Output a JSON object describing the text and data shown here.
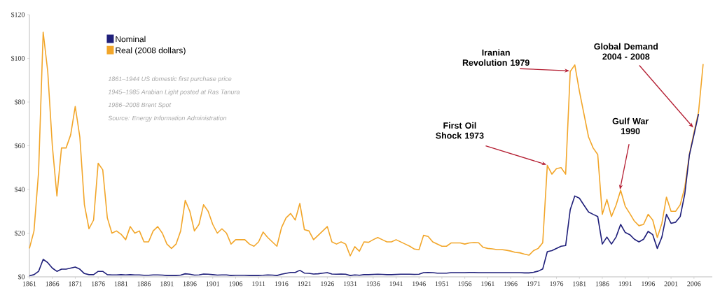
{
  "chart_data": {
    "type": "line",
    "x": [
      1861,
      1862,
      1863,
      1864,
      1865,
      1866,
      1867,
      1868,
      1869,
      1870,
      1871,
      1872,
      1873,
      1874,
      1875,
      1876,
      1877,
      1878,
      1879,
      1880,
      1881,
      1882,
      1883,
      1884,
      1885,
      1886,
      1887,
      1888,
      1889,
      1890,
      1891,
      1892,
      1893,
      1894,
      1895,
      1896,
      1897,
      1898,
      1899,
      1900,
      1901,
      1902,
      1903,
      1904,
      1905,
      1906,
      1907,
      1908,
      1909,
      1910,
      1911,
      1912,
      1913,
      1914,
      1915,
      1916,
      1917,
      1918,
      1919,
      1920,
      1921,
      1922,
      1923,
      1924,
      1925,
      1926,
      1927,
      1928,
      1929,
      1930,
      1931,
      1932,
      1933,
      1934,
      1935,
      1936,
      1937,
      1938,
      1939,
      1940,
      1941,
      1942,
      1943,
      1944,
      1945,
      1946,
      1947,
      1948,
      1949,
      1950,
      1951,
      1952,
      1953,
      1954,
      1955,
      1956,
      1957,
      1958,
      1959,
      1960,
      1961,
      1962,
      1963,
      1964,
      1965,
      1966,
      1967,
      1968,
      1969,
      1970,
      1971,
      1972,
      1973,
      1974,
      1975,
      1976,
      1977,
      1978,
      1979,
      1980,
      1981,
      1982,
      1983,
      1984,
      1985,
      1986,
      1987,
      1988,
      1989,
      1990,
      1991,
      1992,
      1993,
      1994,
      1995,
      1996,
      1997,
      1998,
      1999,
      2000,
      2001,
      2002,
      2003,
      2004,
      2005,
      2006,
      2007,
      2008
    ],
    "series": [
      {
        "name": "Nominal",
        "color": "#1f1f7a",
        "values": [
          0.5,
          1,
          2.5,
          8,
          6.5,
          4,
          2.5,
          3.5,
          3.5,
          4,
          4.5,
          3.5,
          1.5,
          1,
          1,
          2.5,
          2.5,
          1,
          0.9,
          0.9,
          1,
          0.9,
          1,
          0.9,
          0.9,
          0.7,
          0.7,
          0.9,
          0.9,
          0.8,
          0.6,
          0.6,
          0.6,
          0.8,
          1.4,
          1.2,
          0.8,
          0.9,
          1.3,
          1.2,
          1,
          0.8,
          0.9,
          0.9,
          0.6,
          0.7,
          0.7,
          0.7,
          0.6,
          0.6,
          0.6,
          0.7,
          0.9,
          0.8,
          0.6,
          1.2,
          1.6,
          2,
          2,
          3,
          1.7,
          1.6,
          1.3,
          1.4,
          1.7,
          1.9,
          1.3,
          1.2,
          1.3,
          1.2,
          0.6,
          0.9,
          0.7,
          1,
          1,
          1.1,
          1.2,
          1.1,
          1,
          1,
          1.1,
          1.2,
          1.2,
          1.2,
          1.1,
          1.2,
          1.9,
          2,
          1.9,
          1.7,
          1.7,
          1.7,
          1.9,
          1.9,
          1.9,
          1.9,
          2,
          2,
          1.9,
          1.9,
          1.9,
          1.9,
          1.9,
          1.9,
          1.9,
          1.9,
          1.9,
          1.9,
          1.8,
          1.8,
          2.1,
          2.6,
          3.6,
          11.5,
          12,
          13,
          14,
          14.3,
          30.7,
          37,
          36,
          32.8,
          29.7,
          28.6,
          27.6,
          15,
          18.2,
          15,
          18.2,
          24,
          20.3,
          19.3,
          17.2,
          16,
          17.2,
          20.8,
          19.3,
          13,
          18.2,
          28.6,
          24.5,
          25,
          27.6,
          38,
          55.7,
          65,
          74.5,
          null
        ]
      },
      {
        "name": "Real (2008 dollars)",
        "color": "#f2a62a",
        "values": [
          13,
          21,
          48,
          112,
          94,
          60,
          37,
          59,
          59,
          65,
          78,
          64,
          33,
          22,
          26,
          52,
          49,
          27,
          20,
          21,
          19.5,
          17,
          23,
          20,
          21,
          16,
          16,
          21,
          23,
          20,
          15,
          13,
          15,
          21,
          35,
          30,
          21,
          24,
          33,
          30,
          24,
          20,
          22,
          20,
          15,
          17,
          17,
          17,
          15,
          14,
          16,
          20.5,
          18,
          16,
          14,
          22.5,
          27,
          29,
          26,
          33.6,
          21.6,
          21,
          17,
          19,
          21,
          23,
          16,
          15,
          16,
          15,
          9.6,
          13.8,
          11.7,
          16,
          15.8,
          17,
          18,
          17,
          16,
          16,
          17,
          16,
          15,
          14,
          12.7,
          12.4,
          19,
          18.5,
          16,
          15,
          14,
          14,
          15.5,
          15.5,
          15.5,
          15,
          15.5,
          15.7,
          15.6,
          13.5,
          13,
          12.8,
          12.5,
          12.5,
          12.2,
          11.8,
          11.2,
          11,
          10.4,
          9.9,
          12,
          13,
          15.6,
          51,
          47,
          49.5,
          50,
          47,
          94,
          97,
          85,
          74.5,
          64,
          59,
          56,
          28.6,
          35.4,
          27.6,
          32.8,
          39.6,
          32.3,
          29,
          25.5,
          23.4,
          24,
          28.6,
          26,
          18,
          24.5,
          36.5,
          30,
          30,
          33,
          41,
          56,
          66,
          75.5,
          97.4
        ]
      }
    ],
    "xlim": [
      1861,
      2010
    ],
    "xticks": [
      1861,
      1866,
      1871,
      1876,
      1881,
      1886,
      1891,
      1896,
      1901,
      1906,
      1911,
      1916,
      1921,
      1926,
      1931,
      1936,
      1941,
      1946,
      1951,
      1956,
      1961,
      1966,
      1971,
      1976,
      1981,
      1986,
      1991,
      1996,
      2001,
      2006
    ],
    "ylim": [
      0,
      120
    ],
    "yticks": [
      {
        "value": 0,
        "label": "$0"
      },
      {
        "value": 20,
        "label": "$20"
      },
      {
        "value": 40,
        "label": "$40"
      },
      {
        "value": 60,
        "label": "$60"
      },
      {
        "value": 80,
        "label": "$80"
      },
      {
        "value": 100,
        "label": "$100"
      },
      {
        "value": 120,
        "label": "$120"
      }
    ],
    "legend": "top left",
    "marker": "none",
    "line_style": "solid",
    "annotations": [
      "1861–1944 US domestic first purchase price",
      "1945–1985 Arabian Light posted at Ras Tanura",
      "1986–2008 Brent Spot",
      "Source: Energy Information Administration",
      {
        "text": "First Oil Shock 1973",
        "x": 1974,
        "y": 51
      },
      {
        "text": "Iranian Revolution 1979",
        "x": 1979,
        "y": 94
      },
      {
        "text": "Gulf War 1990",
        "x": 1990,
        "y": 39.6
      },
      {
        "text": "Global Demand 2004 - 2008",
        "x": 2006,
        "y": 68
      }
    ]
  }
}
